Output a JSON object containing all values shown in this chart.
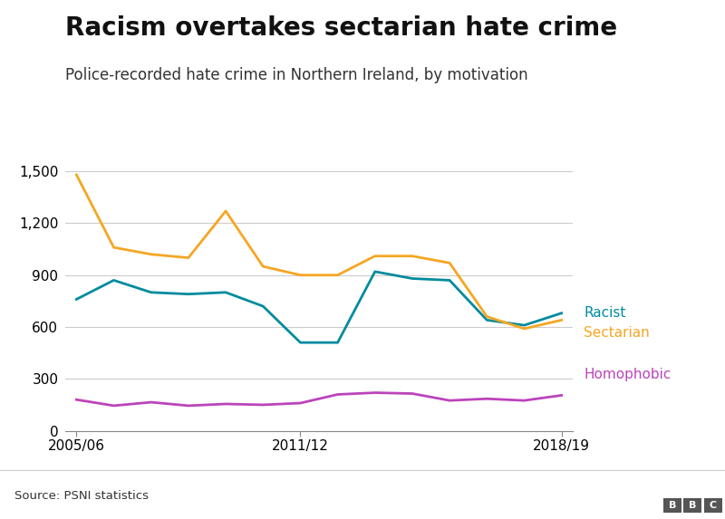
{
  "title": "Racism overtakes sectarian hate crime",
  "subtitle": "Police-recorded hate crime in Northern Ireland, by motivation",
  "source": "Source: PSNI statistics",
  "racist": [
    760,
    870,
    800,
    790,
    800,
    720,
    510,
    510,
    920,
    880,
    870,
    640,
    610,
    680
  ],
  "sectarian": [
    1480,
    1060,
    1020,
    1000,
    1270,
    950,
    900,
    900,
    1010,
    1010,
    970,
    660,
    590,
    640
  ],
  "homophobic": [
    180,
    145,
    165,
    145,
    155,
    150,
    160,
    210,
    220,
    215,
    175,
    185,
    175,
    205
  ],
  "racist_color": "#008B9E",
  "sectarian_color": "#F5A623",
  "homophobic_color": "#BB44BB",
  "background_color": "#FFFFFF",
  "fig_background": "#F5F5F5",
  "grid_color": "#CCCCCC",
  "yticks": [
    0,
    300,
    600,
    900,
    1200,
    1500
  ],
  "ylim": [
    0,
    1560
  ],
  "xtick_positions": [
    0,
    6,
    13
  ],
  "xtick_labels": [
    "2005/06",
    "2011/12",
    "2018/19"
  ],
  "title_fontsize": 20,
  "subtitle_fontsize": 12,
  "tick_fontsize": 11,
  "label_fontsize": 11,
  "line_width": 2.0
}
